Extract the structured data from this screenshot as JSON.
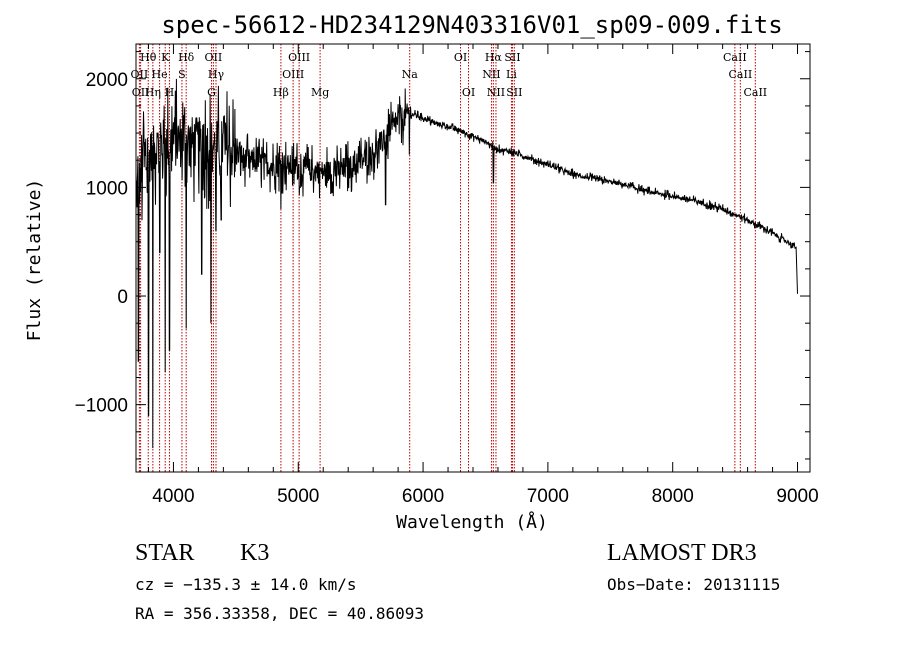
{
  "chart_data": {
    "type": "line",
    "title": "spec-56612-HD234129N403316V01_sp09-009.fits",
    "xlabel": "Wavelength (Å)",
    "ylabel": "Flux (relative)",
    "xlim": [
      3700,
      9100
    ],
    "ylim": [
      -1620,
      2320
    ],
    "x_ticks": [
      4000,
      5000,
      6000,
      7000,
      8000,
      9000
    ],
    "x_tick_labels": [
      "4000",
      "5000",
      "6000",
      "7000",
      "8000",
      "9000"
    ],
    "y_ticks": [
      -1000,
      0,
      1000,
      2000
    ],
    "y_tick_labels": [
      "−1000",
      "0",
      "1000",
      "2000"
    ],
    "grid": false,
    "legend": "none",
    "series": [
      {
        "name": "flux",
        "continuum": {
          "x": [
            3700,
            3800,
            3900,
            4000,
            4100,
            4200,
            4300,
            4400,
            4500,
            4600,
            4700,
            4800,
            4900,
            5000,
            5100,
            5200,
            5300,
            5400,
            5500,
            5600,
            5700,
            5800,
            5900,
            6000,
            6100,
            6200,
            6300,
            6400,
            6500,
            6600,
            6700,
            6800,
            6900,
            7000,
            7200,
            7400,
            7600,
            7800,
            8000,
            8200,
            8400,
            8600,
            8800,
            8990
          ],
          "y": [
            950,
            1280,
            1380,
            1430,
            1420,
            1400,
            1380,
            1380,
            1300,
            1250,
            1220,
            1200,
            1200,
            1180,
            1160,
            1140,
            1150,
            1180,
            1230,
            1320,
            1450,
            1620,
            1680,
            1640,
            1590,
            1560,
            1520,
            1470,
            1420,
            1350,
            1330,
            1290,
            1250,
            1210,
            1120,
            1070,
            1030,
            960,
            920,
            870,
            800,
            700,
            580,
            450
          ]
        },
        "features": [
          {
            "x": 3720,
            "y": -600
          },
          {
            "x": 3760,
            "y": 1700
          },
          {
            "x": 3800,
            "y": -1100
          },
          {
            "x": 3835,
            "y": -1400
          },
          {
            "x": 3870,
            "y": 1500
          },
          {
            "x": 3890,
            "y": 400
          },
          {
            "x": 3934,
            "y": -700
          },
          {
            "x": 3968,
            "y": -500
          },
          {
            "x": 4000,
            "y": 1600
          },
          {
            "x": 4102,
            "y": -300
          },
          {
            "x": 4226,
            "y": 200
          },
          {
            "x": 4300,
            "y": -250
          },
          {
            "x": 4341,
            "y": 600
          },
          {
            "x": 4383,
            "y": 700
          },
          {
            "x": 4404,
            "y": 1650
          },
          {
            "x": 4861,
            "y": 800
          },
          {
            "x": 5015,
            "y": 1000
          },
          {
            "x": 5170,
            "y": 900
          },
          {
            "x": 5270,
            "y": 950
          },
          {
            "x": 5700,
            "y": 840
          },
          {
            "x": 5890,
            "y": 1300
          },
          {
            "x": 6563,
            "y": 1040
          }
        ],
        "x_range": [
          3700,
          8990
        ],
        "end_drop": [
          {
            "x": 9000,
            "y": 20
          }
        ]
      }
    ],
    "spectral_lines": [
      {
        "label": "Hθ",
        "x": 3798,
        "row": 1
      },
      {
        "label": "K",
        "x": 3934,
        "row": 1
      },
      {
        "label": "Hδ",
        "x": 4102,
        "row": 1
      },
      {
        "label": "OII",
        "x": 4320,
        "row": 1
      },
      {
        "label": "OIII",
        "x": 5007,
        "row": 1
      },
      {
        "label": "OI",
        "x": 6300,
        "row": 1
      },
      {
        "label": "Hα",
        "x": 6563,
        "row": 1
      },
      {
        "label": "SII",
        "x": 6716,
        "row": 1
      },
      {
        "label": "CaII",
        "x": 8498,
        "row": 1
      },
      {
        "label": "OII",
        "x": 3727,
        "row": 2
      },
      {
        "label": "He",
        "x": 3889,
        "row": 2
      },
      {
        "label": "S",
        "x": 4068,
        "row": 2
      },
      {
        "label": "Hγ",
        "x": 4341,
        "row": 2
      },
      {
        "label": "OIII",
        "x": 4959,
        "row": 2
      },
      {
        "label": "Na",
        "x": 5893,
        "row": 2
      },
      {
        "label": "NII",
        "x": 6548,
        "row": 2
      },
      {
        "label": "Li",
        "x": 6708,
        "row": 2
      },
      {
        "label": "CaII",
        "x": 8542,
        "row": 2
      },
      {
        "label": "OII",
        "x": 3737,
        "row": 3
      },
      {
        "label": "Hη",
        "x": 3835,
        "row": 3
      },
      {
        "label": "H",
        "x": 3968,
        "row": 3
      },
      {
        "label": "G",
        "x": 4305,
        "row": 3
      },
      {
        "label": "Hβ",
        "x": 4861,
        "row": 3
      },
      {
        "label": "Mg",
        "x": 5175,
        "row": 3
      },
      {
        "label": "OI",
        "x": 6364,
        "row": 3
      },
      {
        "label": "NII",
        "x": 6584,
        "row": 3
      },
      {
        "label": "SII",
        "x": 6731,
        "row": 3
      },
      {
        "label": "CaII",
        "x": 8662,
        "row": 3
      }
    ],
    "line_color": "#000000",
    "marker_color": "#c00000"
  },
  "info": {
    "class_label": "STAR",
    "subclass": "K3",
    "survey": "LAMOST DR3",
    "cz_line": "cz = −135.3 ± 14.0 km/s",
    "obs_date_line": "Obs−Date: 20131115",
    "coords_line": "RA = 356.33358, DEC =  40.86093"
  }
}
